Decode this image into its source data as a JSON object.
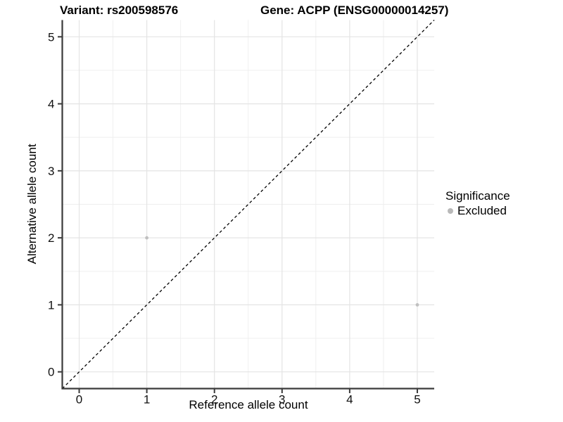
{
  "titles": {
    "left": "Variant: rs200598576",
    "right": "Gene: ACPP (ENSG00000014257)"
  },
  "legend": {
    "title": "Significance",
    "items": [
      {
        "label": "Excluded",
        "color": "#b9b9b9"
      }
    ]
  },
  "colors": {
    "background": "#ffffff",
    "axis_line": "#3a3a3a",
    "tick_mark": "#3a3a3a",
    "tick_label": "#111111",
    "grid_major": "#e4e4e4",
    "grid_minor": "#eeeeee",
    "identity_line": "#000000",
    "point": "#c0c0c0"
  },
  "chart_data": {
    "type": "scatter",
    "title_left": "Variant: rs200598576",
    "title_right": "Gene: ACPP (ENSG00000014257)",
    "xlabel": "Reference allele count",
    "ylabel": "Alternative allele count",
    "xlim": [
      -0.25,
      5.25
    ],
    "ylim": [
      -0.25,
      5.25
    ],
    "x_ticks": [
      0,
      1,
      2,
      3,
      4,
      5
    ],
    "y_ticks": [
      0,
      1,
      2,
      3,
      4,
      5
    ],
    "x_minor_ticks": [
      0.5,
      1.5,
      2.5,
      3.5,
      4.5
    ],
    "y_minor_ticks": [
      0.5,
      1.5,
      2.5,
      3.5,
      4.5
    ],
    "grid": true,
    "legend_position": "right",
    "legend_title": "Significance",
    "series": [
      {
        "name": "Excluded",
        "color": "#c0c0c0",
        "points": [
          [
            1,
            2
          ],
          [
            5,
            1
          ]
        ]
      }
    ],
    "identity_line": {
      "style": "dashed",
      "from": [
        -0.25,
        -0.25
      ],
      "to": [
        5.25,
        5.25
      ]
    }
  }
}
